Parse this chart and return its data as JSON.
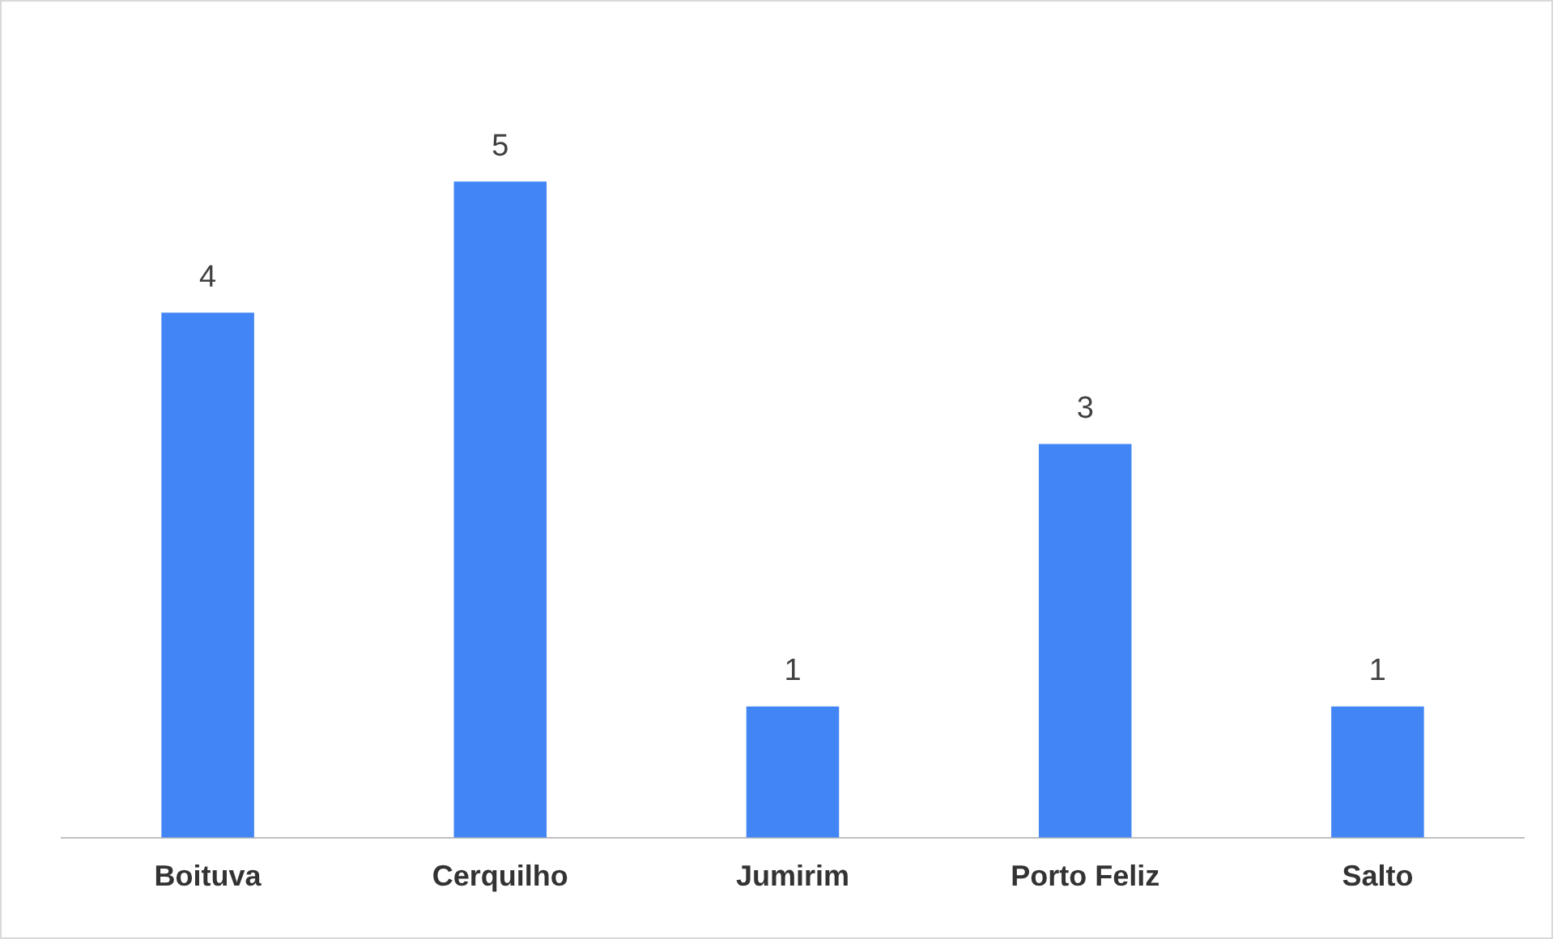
{
  "chart_data": {
    "type": "bar",
    "categories": [
      "Boituva",
      "Cerquilho",
      "Jumirim",
      "Porto Feliz",
      "Salto"
    ],
    "values": [
      4,
      5,
      1,
      3,
      1
    ],
    "color": "#4285f4",
    "data_labels": true,
    "grid": false,
    "legend": false
  }
}
